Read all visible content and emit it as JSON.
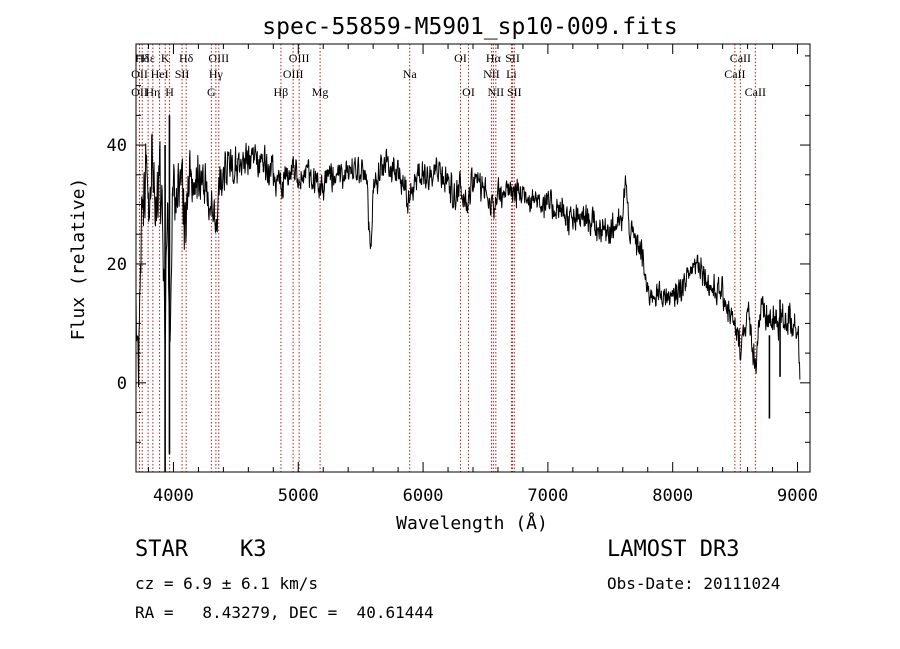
{
  "chart_data": {
    "type": "line",
    "title": "spec-55859-M5901_sp10-009.fits",
    "xlabel": "Wavelength (Å)",
    "ylabel": "Flux (relative)",
    "xlim": [
      3700,
      9100
    ],
    "ylim": [
      -15,
      57
    ],
    "xticks": [
      4000,
      5000,
      6000,
      7000,
      8000,
      9000
    ],
    "yticks": [
      0,
      20,
      40
    ],
    "x_minor_step": 200,
    "y_minor_step": 5,
    "grid": false,
    "series": [
      {
        "name": "flux",
        "color": "#000000",
        "seed": 55859,
        "anchors": [
          [
            3700,
            10
          ],
          [
            3720,
            2
          ],
          [
            3750,
            30
          ],
          [
            3780,
            38
          ],
          [
            3800,
            25
          ],
          [
            3830,
            40
          ],
          [
            3860,
            28
          ],
          [
            3890,
            35
          ],
          [
            3920,
            22
          ],
          [
            3933,
            10
          ],
          [
            3950,
            30
          ],
          [
            3968,
            5
          ],
          [
            3990,
            30
          ],
          [
            4020,
            33
          ],
          [
            4050,
            34
          ],
          [
            4080,
            31
          ],
          [
            4101,
            24
          ],
          [
            4130,
            34
          ],
          [
            4160,
            35
          ],
          [
            4200,
            35
          ],
          [
            4250,
            33
          ],
          [
            4300,
            30
          ],
          [
            4340,
            26
          ],
          [
            4380,
            35
          ],
          [
            4450,
            37
          ],
          [
            4500,
            36
          ],
          [
            4600,
            37
          ],
          [
            4700,
            37
          ],
          [
            4800,
            36
          ],
          [
            4861,
            32
          ],
          [
            4900,
            35
          ],
          [
            4950,
            36
          ],
          [
            5000,
            34
          ],
          [
            5050,
            35
          ],
          [
            5100,
            35
          ],
          [
            5173,
            33
          ],
          [
            5250,
            35
          ],
          [
            5300,
            34
          ],
          [
            5400,
            36
          ],
          [
            5500,
            36
          ],
          [
            5550,
            33
          ],
          [
            5580,
            22
          ],
          [
            5600,
            33
          ],
          [
            5700,
            37
          ],
          [
            5800,
            36
          ],
          [
            5893,
            30
          ],
          [
            5950,
            35
          ],
          [
            6000,
            35
          ],
          [
            6100,
            35
          ],
          [
            6200,
            34
          ],
          [
            6260,
            31
          ],
          [
            6300,
            33
          ],
          [
            6350,
            31
          ],
          [
            6400,
            34
          ],
          [
            6500,
            33
          ],
          [
            6563,
            29
          ],
          [
            6600,
            32
          ],
          [
            6700,
            32
          ],
          [
            6800,
            32
          ],
          [
            6900,
            31
          ],
          [
            7000,
            30
          ],
          [
            7100,
            29
          ],
          [
            7200,
            27
          ],
          [
            7300,
            28
          ],
          [
            7400,
            26
          ],
          [
            7500,
            26
          ],
          [
            7600,
            27
          ],
          [
            7620,
            35
          ],
          [
            7650,
            26
          ],
          [
            7700,
            24
          ],
          [
            7750,
            22
          ],
          [
            7800,
            15
          ],
          [
            7900,
            15
          ],
          [
            8000,
            14
          ],
          [
            8100,
            17
          ],
          [
            8200,
            21
          ],
          [
            8300,
            16
          ],
          [
            8400,
            15
          ],
          [
            8498,
            9
          ],
          [
            8542,
            6
          ],
          [
            8600,
            12
          ],
          [
            8662,
            3
          ],
          [
            8700,
            12
          ],
          [
            8800,
            10
          ],
          [
            8900,
            11
          ],
          [
            9000,
            10
          ],
          [
            9020,
            1
          ]
        ],
        "noise": [
          [
            3700,
            9
          ],
          [
            4050,
            8
          ],
          [
            4300,
            4
          ],
          [
            5600,
            3
          ],
          [
            6600,
            3
          ],
          [
            7500,
            3
          ],
          [
            8000,
            2.5
          ],
          [
            8500,
            3
          ],
          [
            9020,
            4
          ]
        ],
        "step_angstrom": 3
      }
    ],
    "spikes": [
      [
        3933,
        40,
        -15
      ],
      [
        3968,
        45,
        -12
      ],
      [
        8775,
        8,
        -6
      ],
      [
        8860,
        14,
        1
      ]
    ],
    "lines": [
      {
        "name": "Hδ",
        "wavelength": 3750,
        "row": 1
      },
      {
        "name": "OII",
        "wavelength": 3728,
        "row": 2
      },
      {
        "name": "OII",
        "wavelength": 3728,
        "row": 3
      },
      {
        "name": "Hε",
        "wavelength": 3797,
        "row": 1
      },
      {
        "name": "Hη",
        "wavelength": 3835,
        "row": 3
      },
      {
        "name": "HeI",
        "wavelength": 3889,
        "row": 2
      },
      {
        "name": "K",
        "wavelength": 3934,
        "row": 1
      },
      {
        "name": "H",
        "wavelength": 3969,
        "row": 3
      },
      {
        "name": "SII",
        "wavelength": 4069,
        "row": 2
      },
      {
        "name": "Hδ",
        "wavelength": 4102,
        "row": 1
      },
      {
        "name": "OIII",
        "wavelength": 4363,
        "row": 1
      },
      {
        "name": "Hγ",
        "wavelength": 4340,
        "row": 2
      },
      {
        "name": "G",
        "wavelength": 4304,
        "row": 3
      },
      {
        "name": "Hβ",
        "wavelength": 4861,
        "row": 3
      },
      {
        "name": "OIII",
        "wavelength": 5007,
        "row": 1
      },
      {
        "name": "OIII",
        "wavelength": 4959,
        "row": 2
      },
      {
        "name": "Mg",
        "wavelength": 5175,
        "row": 3
      },
      {
        "name": "Na",
        "wavelength": 5893,
        "row": 2
      },
      {
        "name": "OI",
        "wavelength": 6300,
        "row": 1
      },
      {
        "name": "OI",
        "wavelength": 6364,
        "row": 3
      },
      {
        "name": "Hα",
        "wavelength": 6563,
        "row": 1
      },
      {
        "name": "NII",
        "wavelength": 6548,
        "row": 2
      },
      {
        "name": "NII",
        "wavelength": 6583,
        "row": 3
      },
      {
        "name": "SII",
        "wavelength": 6717,
        "row": 1
      },
      {
        "name": "Li",
        "wavelength": 6708,
        "row": 2
      },
      {
        "name": "SII",
        "wavelength": 6731,
        "row": 3
      },
      {
        "name": "CaII",
        "wavelength": 8542,
        "row": 1
      },
      {
        "name": "CaII",
        "wavelength": 8498,
        "row": 2
      },
      {
        "name": "CaII",
        "wavelength": 8662,
        "row": 3
      }
    ]
  },
  "object": {
    "class": "STAR",
    "subclass": "K3",
    "cz": "cz = 6.9 ± 6.1 km/s",
    "radec": "RA =   8.43279, DEC =  40.61444",
    "survey": "LAMOST DR3",
    "obs_date": "Obs-Date: 20111024"
  },
  "colors": {
    "axis": "#000000",
    "line_marker": "#b22222",
    "spectrum": "#000000"
  }
}
